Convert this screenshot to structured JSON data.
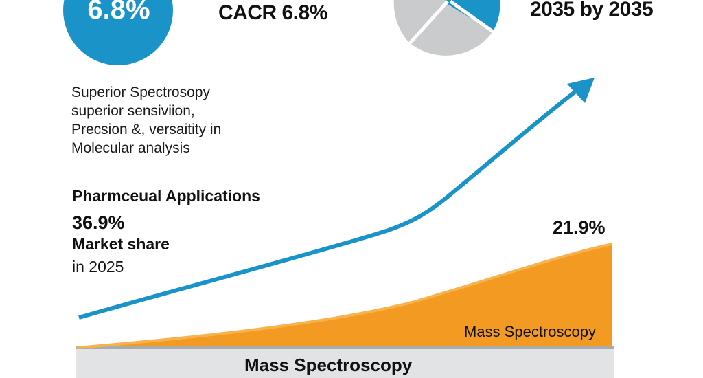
{
  "colors": {
    "blue": "#1a93c8",
    "orange": "#f39a22",
    "gray": "#c9cbcc",
    "text": "#111111"
  },
  "top_left_circle": {
    "value": "6.8%"
  },
  "cagr_label": "CACR 6.8%",
  "top_right_label": "2035 by 2035",
  "description": {
    "lines": [
      "Superior Spectrosopy",
      "superior sensiviion,",
      "Precsion &, versaitity in",
      "Molecular analysis"
    ]
  },
  "pharma": {
    "title": "Pharmceual Applications",
    "value": "36.9%",
    "label": "Market share",
    "year": "in 2025"
  },
  "area_value": "21.9%",
  "area_label": "Mass Spectroscopy",
  "bottom_band_label": "Mass Spectroscopy",
  "icons": {
    "arrow": "trend-arrow-up-icon",
    "pie": "pie-chart-icon"
  }
}
